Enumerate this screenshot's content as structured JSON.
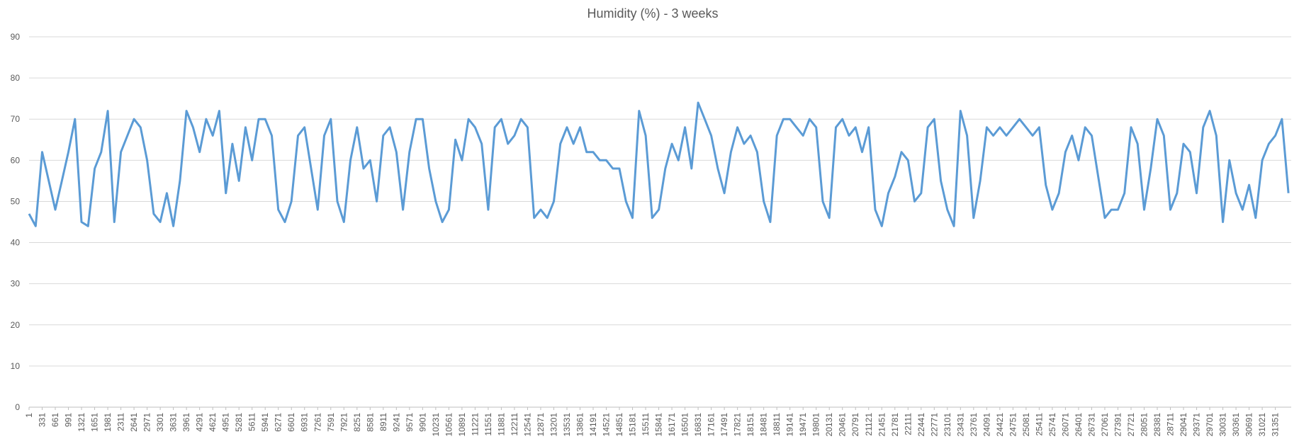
{
  "chart_data": {
    "type": "line",
    "title": "Humidity (%) - 3 weeks",
    "x": [
      1,
      166,
      331,
      496,
      661,
      826,
      991,
      1156,
      1321,
      1486,
      1651,
      1816,
      1981,
      2146,
      2311,
      2476,
      2641,
      2806,
      2971,
      3136,
      3301,
      3466,
      3631,
      3796,
      3961,
      4126,
      4291,
      4456,
      4621,
      4786,
      4951,
      5116,
      5281,
      5446,
      5611,
      5776,
      5941,
      6106,
      6271,
      6436,
      6601,
      6766,
      6931,
      7096,
      7261,
      7426,
      7591,
      7756,
      7921,
      8086,
      8251,
      8416,
      8581,
      8746,
      8911,
      9076,
      9241,
      9406,
      9571,
      9736,
      9901,
      10066,
      10231,
      10396,
      10561,
      10726,
      10891,
      11056,
      11221,
      11386,
      11551,
      11716,
      11881,
      12046,
      12211,
      12376,
      12541,
      12706,
      12871,
      13036,
      13201,
      13366,
      13531,
      13696,
      13861,
      14026,
      14191,
      14356,
      14521,
      14686,
      14851,
      15016,
      15181,
      15346,
      15511,
      15676,
      15841,
      16006,
      16171,
      16336,
      16501,
      16666,
      16831,
      16996,
      17161,
      17326,
      17491,
      17656,
      17821,
      17986,
      18151,
      18316,
      18481,
      18646,
      18811,
      18976,
      19141,
      19306,
      19471,
      19636,
      19801,
      19966,
      20131,
      20296,
      20461,
      20626,
      20791,
      20956,
      21121,
      21286,
      21451,
      21616,
      21781,
      21946,
      22111,
      22276,
      22441,
      22606,
      22771,
      22936,
      23101,
      23266,
      23431,
      23596,
      23761,
      23926,
      24091,
      24256,
      24421,
      24586,
      24751,
      24916,
      25081,
      25246,
      25411,
      25576,
      25741,
      25906,
      26071,
      26236,
      26401,
      26566,
      26731,
      26896,
      27061,
      27226,
      27391,
      27556,
      27721,
      27886,
      28051,
      28216,
      28381,
      28546,
      28711,
      28876,
      29041,
      29206,
      29371,
      29536,
      29701,
      29866,
      30031,
      30196,
      30361,
      30526,
      30691,
      30856,
      31021,
      31186,
      31351,
      31516,
      31681
    ],
    "series": [
      {
        "color": "#5b9bd5",
        "values": [
          47,
          44,
          62,
          55,
          48,
          55,
          62,
          70,
          45,
          44,
          58,
          62,
          72,
          45,
          62,
          66,
          70,
          68,
          60,
          47,
          45,
          52,
          44,
          55,
          72,
          68,
          62,
          70,
          66,
          72,
          52,
          64,
          55,
          68,
          60,
          70,
          70,
          66,
          48,
          45,
          50,
          66,
          68,
          58,
          48,
          66,
          70,
          50,
          45,
          60,
          68,
          58,
          60,
          50,
          66,
          68,
          62,
          48,
          62,
          70,
          70,
          58,
          50,
          45,
          48,
          65,
          60,
          70,
          68,
          64,
          48,
          68,
          70,
          64,
          66,
          70,
          68,
          46,
          48,
          46,
          50,
          64,
          68,
          64,
          68,
          62,
          62,
          60,
          60,
          58,
          58,
          50,
          46,
          72,
          66,
          46,
          48,
          58,
          64,
          60,
          68,
          58,
          74,
          70,
          66,
          58,
          52,
          62,
          68,
          64,
          66,
          62,
          50,
          45,
          66,
          70,
          70,
          68,
          66,
          70,
          68,
          50,
          46,
          68,
          70,
          66,
          68,
          62,
          68,
          48,
          44,
          52,
          56,
          62,
          60,
          50,
          52,
          68,
          70,
          55,
          48,
          44,
          72,
          66,
          46,
          55,
          68,
          66,
          68,
          66,
          68,
          70,
          68,
          66,
          68,
          54,
          48,
          52,
          62,
          66,
          60,
          68,
          66,
          56,
          46,
          48,
          48,
          52,
          68,
          64,
          48,
          58,
          70,
          66,
          48,
          52,
          64,
          62,
          52,
          68,
          72,
          66,
          45,
          60,
          52,
          48,
          54,
          46,
          60,
          64,
          66,
          70,
          52
        ]
      }
    ],
    "xlim": [
      1,
      31750
    ],
    "xticks": [
      1,
      331,
      661,
      991,
      1321,
      1651,
      1981,
      2311,
      2641,
      2971,
      3301,
      3631,
      3961,
      4291,
      4621,
      4951,
      5281,
      5611,
      5941,
      6271,
      6601,
      6931,
      7261,
      7591,
      7921,
      8251,
      8581,
      8911,
      9241,
      9571,
      9901,
      10231,
      10561,
      10891,
      11221,
      11551,
      11881,
      12211,
      12541,
      12871,
      13201,
      13531,
      13861,
      14191,
      14521,
      14851,
      15181,
      15511,
      15841,
      16171,
      16501,
      16831,
      17161,
      17491,
      17821,
      18151,
      18481,
      18811,
      19141,
      19471,
      19801,
      20131,
      20461,
      20791,
      21121,
      21451,
      21781,
      22111,
      22441,
      22771,
      23101,
      23431,
      23761,
      24091,
      24421,
      24751,
      25081,
      25411,
      25741,
      26071,
      26401,
      26731,
      27061,
      27391,
      27721,
      28051,
      28381,
      28711,
      29041,
      29371,
      29701,
      30031,
      30361,
      30691,
      31021,
      31351
    ],
    "ylim": [
      0,
      90
    ],
    "yticks": [
      0,
      10,
      20,
      30,
      40,
      50,
      60,
      70,
      80,
      90
    ],
    "grid": true
  }
}
